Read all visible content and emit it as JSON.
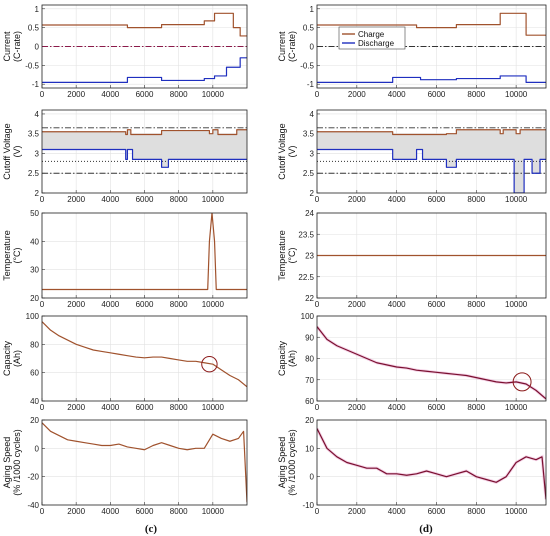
{
  "figure": {
    "captions": [
      "(c)",
      "(d)"
    ],
    "legend": {
      "charge_label": "Charge",
      "discharge_label": "Discharge",
      "charge_color": "#a0522d",
      "discharge_color": "#1f2fbf"
    }
  },
  "chart_data": [
    {
      "id": "c-current",
      "column": "(c)",
      "type": "line",
      "ylabel": [
        "Current",
        "(C-rate)"
      ],
      "xlim": [
        0,
        12000
      ],
      "ylim": [
        -1.1,
        1.1
      ],
      "xticks": [
        0,
        2000,
        4000,
        6000,
        8000,
        10000
      ],
      "yticks": [
        -1,
        -0.5,
        0,
        0.5,
        1
      ],
      "series": [
        {
          "role": "charge",
          "steps": [
            [
              0,
              0.57
            ],
            [
              5000,
              0.5
            ],
            [
              7000,
              0.58
            ],
            [
              9500,
              0.68
            ],
            [
              10100,
              0.88
            ],
            [
              11200,
              0.5
            ],
            [
              11600,
              0.28
            ],
            [
              12000,
              0.28
            ]
          ]
        },
        {
          "role": "discharge",
          "steps": [
            [
              0,
              -0.95
            ],
            [
              5000,
              -0.82
            ],
            [
              7000,
              -0.9
            ],
            [
              9500,
              -0.85
            ],
            [
              10100,
              -0.78
            ],
            [
              10800,
              -0.55
            ],
            [
              11600,
              -0.3
            ],
            [
              12000,
              -0.3
            ]
          ]
        }
      ],
      "reference_lines": [
        {
          "y": 0,
          "style": "dashdot",
          "color": "#8b1a4a"
        }
      ]
    },
    {
      "id": "c-voltage",
      "column": "(c)",
      "type": "line",
      "ylabel": [
        "Cutoff Voltage",
        "(V)"
      ],
      "xlim": [
        0,
        12000
      ],
      "ylim": [
        2,
        4.1
      ],
      "xticks": [
        0,
        2000,
        4000,
        6000,
        8000,
        10000
      ],
      "yticks": [
        2,
        2.5,
        3,
        3.5,
        4
      ],
      "fill_between": true,
      "series": [
        {
          "role": "charge",
          "steps": [
            [
              0,
              3.55
            ],
            [
              4900,
              3.48
            ],
            [
              5000,
              3.6
            ],
            [
              5200,
              3.48
            ],
            [
              7000,
              3.58
            ],
            [
              9800,
              3.5
            ],
            [
              10000,
              3.6
            ],
            [
              10300,
              3.48
            ],
            [
              11400,
              3.6
            ],
            [
              12000,
              3.6
            ]
          ]
        },
        {
          "role": "discharge",
          "steps": [
            [
              0,
              3.1
            ],
            [
              4900,
              2.85
            ],
            [
              5000,
              3.1
            ],
            [
              5300,
              2.85
            ],
            [
              7000,
              2.65
            ],
            [
              7400,
              2.85
            ],
            [
              12000,
              2.85
            ]
          ]
        }
      ],
      "reference_lines": [
        {
          "y": 3.65,
          "style": "dashdot",
          "color": "#333333"
        },
        {
          "y": 2.8,
          "style": "dotted",
          "color": "#333333"
        },
        {
          "y": 2.5,
          "style": "dashdot",
          "color": "#333333"
        }
      ]
    },
    {
      "id": "c-temp",
      "column": "(c)",
      "type": "line",
      "ylabel": [
        "Temperature",
        "(°C)"
      ],
      "xlim": [
        0,
        12000
      ],
      "ylim": [
        20,
        50
      ],
      "xticks": [
        0,
        2000,
        4000,
        6000,
        8000,
        10000
      ],
      "yticks": [
        20,
        30,
        40,
        50
      ],
      "series": [
        {
          "role": "charge",
          "points": [
            [
              0,
              23
            ],
            [
              9700,
              23
            ],
            [
              9800,
              40
            ],
            [
              9950,
              50
            ],
            [
              10100,
              40
            ],
            [
              10200,
              23
            ],
            [
              12000,
              23
            ]
          ]
        }
      ]
    },
    {
      "id": "c-capacity",
      "column": "(c)",
      "type": "line",
      "ylabel": [
        "Capacity",
        "(Ah)"
      ],
      "xlim": [
        0,
        12000
      ],
      "ylim": [
        40,
        100
      ],
      "xticks": [
        0,
        2000,
        4000,
        6000,
        8000,
        10000
      ],
      "yticks": [
        40,
        60,
        80,
        100
      ],
      "circle": {
        "x": 9800,
        "y": 66,
        "r_data_x": 450
      },
      "series": [
        {
          "role": "charge",
          "points": [
            [
              0,
              96
            ],
            [
              500,
              90
            ],
            [
              1000,
              86
            ],
            [
              1500,
              83
            ],
            [
              2000,
              80
            ],
            [
              2500,
              78
            ],
            [
              3000,
              76
            ],
            [
              3500,
              75
            ],
            [
              4000,
              74
            ],
            [
              4500,
              73
            ],
            [
              5000,
              72
            ],
            [
              5500,
              71
            ],
            [
              6000,
              70.5
            ],
            [
              6500,
              71
            ],
            [
              7000,
              71
            ],
            [
              7500,
              70
            ],
            [
              8000,
              69
            ],
            [
              8500,
              68
            ],
            [
              9000,
              68
            ],
            [
              9500,
              67
            ],
            [
              10000,
              66
            ],
            [
              10500,
              62
            ],
            [
              11000,
              58
            ],
            [
              11500,
              55
            ],
            [
              12000,
              50
            ]
          ]
        }
      ]
    },
    {
      "id": "c-aging",
      "column": "(c)",
      "type": "line",
      "ylabel": [
        "Aging Speed",
        "(% /1000 cycles)"
      ],
      "xlim": [
        0,
        12000
      ],
      "ylim": [
        -40,
        20
      ],
      "xticks": [
        0,
        2000,
        4000,
        6000,
        8000,
        10000
      ],
      "yticks": [
        -40,
        -20,
        0,
        20
      ],
      "series": [
        {
          "role": "charge",
          "points": [
            [
              0,
              18
            ],
            [
              500,
              12
            ],
            [
              1000,
              9
            ],
            [
              1500,
              6
            ],
            [
              2000,
              5
            ],
            [
              2500,
              4
            ],
            [
              3000,
              3
            ],
            [
              3500,
              2
            ],
            [
              4000,
              2
            ],
            [
              4500,
              3
            ],
            [
              5000,
              1
            ],
            [
              5500,
              0
            ],
            [
              6000,
              -1
            ],
            [
              6500,
              2
            ],
            [
              7000,
              4
            ],
            [
              7500,
              2
            ],
            [
              8000,
              0
            ],
            [
              8500,
              -1
            ],
            [
              9000,
              0
            ],
            [
              9500,
              0
            ],
            [
              10000,
              10
            ],
            [
              10500,
              7
            ],
            [
              11000,
              5
            ],
            [
              11500,
              7
            ],
            [
              11800,
              12
            ],
            [
              12000,
              -38
            ]
          ]
        }
      ]
    },
    {
      "id": "d-current",
      "column": "(d)",
      "type": "line",
      "ylabel": [
        "Current",
        "(C-rate)"
      ],
      "xlim": [
        0,
        11500
      ],
      "ylim": [
        -1.1,
        1.1
      ],
      "xticks": [
        0,
        2000,
        4000,
        6000,
        8000,
        10000
      ],
      "yticks": [
        -1,
        -0.5,
        0,
        0.5,
        1
      ],
      "legend": {
        "position": "upper-left",
        "entries": [
          "Charge",
          "Discharge"
        ]
      },
      "series": [
        {
          "role": "charge",
          "steps": [
            [
              0,
              0.57
            ],
            [
              5000,
              0.5
            ],
            [
              7000,
              0.58
            ],
            [
              9200,
              0.88
            ],
            [
              10500,
              0.3
            ],
            [
              11500,
              0.3
            ]
          ]
        },
        {
          "role": "discharge",
          "steps": [
            [
              0,
              -0.95
            ],
            [
              3800,
              -0.82
            ],
            [
              5200,
              -0.88
            ],
            [
              7000,
              -0.85
            ],
            [
              9200,
              -0.78
            ],
            [
              10500,
              -0.95
            ],
            [
              11500,
              -0.95
            ]
          ]
        }
      ],
      "reference_lines": [
        {
          "y": 0,
          "style": "dashdot",
          "color": "#333333"
        }
      ]
    },
    {
      "id": "d-voltage",
      "column": "(d)",
      "type": "line",
      "ylabel": [
        "Cutoff Voltage",
        "(V)"
      ],
      "xlim": [
        0,
        11500
      ],
      "ylim": [
        2,
        4.1
      ],
      "xticks": [
        0,
        2000,
        4000,
        6000,
        8000,
        10000
      ],
      "yticks": [
        2,
        2.5,
        3,
        3.5,
        4
      ],
      "fill_between": true,
      "series": [
        {
          "role": "charge",
          "steps": [
            [
              0,
              3.55
            ],
            [
              3800,
              3.48
            ],
            [
              6500,
              3.5
            ],
            [
              7000,
              3.6
            ],
            [
              9200,
              3.5
            ],
            [
              9350,
              3.6
            ],
            [
              10000,
              3.5
            ],
            [
              10200,
              3.6
            ],
            [
              11500,
              3.6
            ]
          ]
        },
        {
          "role": "discharge",
          "steps": [
            [
              0,
              3.1
            ],
            [
              3800,
              2.85
            ],
            [
              5000,
              3.1
            ],
            [
              5300,
              2.85
            ],
            [
              6500,
              2.65
            ],
            [
              7000,
              2.85
            ],
            [
              9900,
              2.0
            ],
            [
              10400,
              2.85
            ],
            [
              10800,
              2.5
            ],
            [
              11200,
              2.85
            ],
            [
              11500,
              2.85
            ]
          ]
        }
      ],
      "reference_lines": [
        {
          "y": 3.65,
          "style": "dashdot",
          "color": "#333333"
        },
        {
          "y": 2.8,
          "style": "dotted",
          "color": "#333333"
        },
        {
          "y": 2.5,
          "style": "dashdot",
          "color": "#333333"
        }
      ]
    },
    {
      "id": "d-temp",
      "column": "(d)",
      "type": "line",
      "ylabel": [
        "Temperature",
        "(°C)"
      ],
      "xlim": [
        0,
        11500
      ],
      "ylim": [
        22,
        24
      ],
      "xticks": [
        0,
        2000,
        4000,
        6000,
        8000,
        10000
      ],
      "yticks": [
        22,
        22.5,
        23,
        23.5,
        24
      ],
      "series": [
        {
          "role": "charge",
          "points": [
            [
              0,
              23
            ],
            [
              11500,
              23
            ]
          ]
        }
      ]
    },
    {
      "id": "d-capacity",
      "column": "(d)",
      "type": "line",
      "ylabel": [
        "Capacity",
        "(Ah)"
      ],
      "xlim": [
        0,
        11500
      ],
      "ylim": [
        60,
        100
      ],
      "xticks": [
        0,
        2000,
        4000,
        6000,
        8000,
        10000
      ],
      "yticks": [
        60,
        70,
        80,
        90,
        100
      ],
      "circle": {
        "x": 10300,
        "y": 69,
        "r_data_x": 450
      },
      "series": [
        {
          "role": "mixed",
          "color": "#7a1030",
          "points": [
            [
              0,
              95
            ],
            [
              500,
              89
            ],
            [
              1000,
              86
            ],
            [
              1500,
              84
            ],
            [
              2000,
              82
            ],
            [
              2500,
              80
            ],
            [
              3000,
              78
            ],
            [
              3500,
              77
            ],
            [
              4000,
              76
            ],
            [
              4500,
              75.5
            ],
            [
              5000,
              74.5
            ],
            [
              5500,
              74
            ],
            [
              6000,
              73.5
            ],
            [
              6500,
              73
            ],
            [
              7000,
              72.5
            ],
            [
              7500,
              72
            ],
            [
              8000,
              71
            ],
            [
              8500,
              70
            ],
            [
              9000,
              69
            ],
            [
              9500,
              68.5
            ],
            [
              10000,
              69
            ],
            [
              10500,
              68
            ],
            [
              11000,
              65
            ],
            [
              11500,
              61
            ]
          ]
        }
      ]
    },
    {
      "id": "d-aging",
      "column": "(d)",
      "type": "line",
      "ylabel": [
        "Aging Speed",
        "(% /1000 cycles)"
      ],
      "xlim": [
        0,
        11500
      ],
      "ylim": [
        -10,
        20
      ],
      "xticks": [
        0,
        2000,
        4000,
        6000,
        8000,
        10000
      ],
      "yticks": [
        -10,
        0,
        10,
        20
      ],
      "series": [
        {
          "role": "mixed",
          "color": "#7a1030",
          "points": [
            [
              0,
              17
            ],
            [
              500,
              10
            ],
            [
              1000,
              7
            ],
            [
              1500,
              5
            ],
            [
              2000,
              4
            ],
            [
              2500,
              3
            ],
            [
              3000,
              3
            ],
            [
              3500,
              1
            ],
            [
              4000,
              1
            ],
            [
              4500,
              0.5
            ],
            [
              5000,
              1
            ],
            [
              5500,
              2
            ],
            [
              6000,
              1
            ],
            [
              6500,
              0
            ],
            [
              7000,
              1
            ],
            [
              7500,
              2
            ],
            [
              8000,
              0
            ],
            [
              8500,
              -1
            ],
            [
              9000,
              -2
            ],
            [
              9500,
              0
            ],
            [
              10000,
              5
            ],
            [
              10500,
              7
            ],
            [
              11000,
              6
            ],
            [
              11300,
              7
            ],
            [
              11500,
              -8
            ]
          ]
        }
      ]
    }
  ]
}
